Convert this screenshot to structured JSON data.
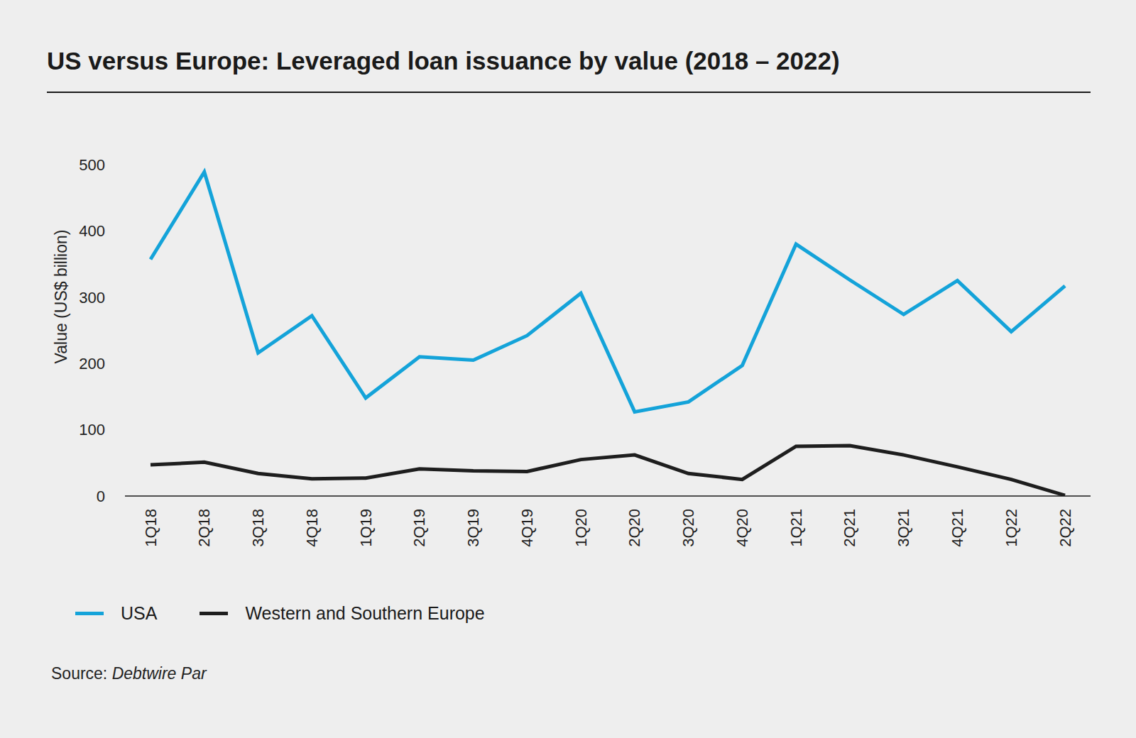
{
  "chart_data": {
    "type": "line",
    "title": "US versus Europe: Leveraged loan issuance by value (2018 – 2022)",
    "y_label": "Value (US$ billion)",
    "source_label": "Source:",
    "source": "Debtwire Par",
    "categories": [
      "1Q18",
      "2Q18",
      "3Q18",
      "4Q18",
      "1Q19",
      "2Q19",
      "3Q19",
      "4Q19",
      "1Q20",
      "2Q20",
      "3Q20",
      "4Q20",
      "1Q21",
      "2Q21",
      "3Q21",
      "4Q21",
      "1Q22",
      "2Q22"
    ],
    "series": [
      {
        "name": "USA",
        "color": "#14a3d9",
        "values": [
          357,
          489,
          216,
          272,
          148,
          210,
          205,
          242,
          306,
          127,
          142,
          197,
          380,
          326,
          274,
          325,
          248,
          317
        ]
      },
      {
        "name": "Western and Southern Europe",
        "color": "#1e1e1e",
        "values": [
          47,
          51,
          34,
          26,
          27,
          41,
          38,
          37,
          55,
          62,
          34,
          25,
          75,
          76,
          62,
          44,
          25,
          1
        ]
      }
    ],
    "ylim": [
      0,
      500
    ],
    "yticks": [
      0,
      100,
      200,
      300,
      400,
      500
    ],
    "grid": false,
    "legend": "bottom-left"
  }
}
